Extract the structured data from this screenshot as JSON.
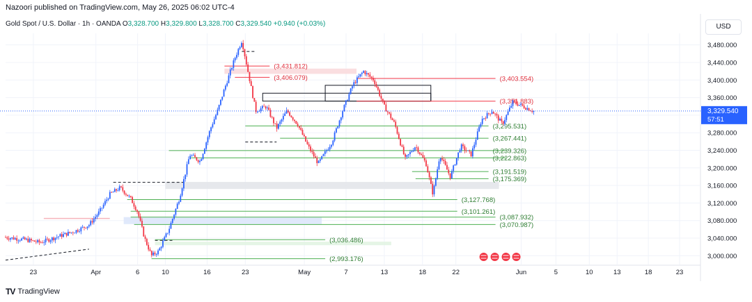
{
  "header": {
    "published": "Nazoori published on TradingView.com, May 26, 2025 06:02 UTC-4",
    "symbol": "Gold Spot / U.S. Dollar · 1h · OANDA",
    "o_label": "O",
    "o": "3,328.700",
    "h_label": "H",
    "h": "3,329.800",
    "l_label": "L",
    "l": "3,328.700",
    "c_label": "C",
    "c": "3,329.540",
    "change": "+0.940 (+0.03%)",
    "currency": "USD"
  },
  "footer": {
    "logo": "TV",
    "brand": "TradingView"
  },
  "colors": {
    "up": "#089981",
    "down": "#f23645",
    "bull_candle": "#2962ff",
    "support": "#4caf50",
    "resistance": "#f23645",
    "price": "#2962ff"
  },
  "chart_data": {
    "type": "candlestick",
    "title": "Gold Spot / U.S. Dollar · 1h · OANDA",
    "y_range": [
      2980,
      3500
    ],
    "y_ticks": [
      "3,480.000",
      "3,440.000",
      "3,400.000",
      "3,360.000",
      "3,320.000",
      "3,280.000",
      "3,240.000",
      "3,200.000",
      "3,160.000",
      "3,120.000",
      "3,080.000",
      "3,040.000",
      "3,000.000"
    ],
    "y_tick_values": [
      3480,
      3440,
      3400,
      3360,
      3320,
      3280,
      3240,
      3200,
      3160,
      3120,
      3080,
      3040,
      3000
    ],
    "x_ticks": [
      "23",
      "Apr",
      "6",
      "10",
      "16",
      "23",
      "May",
      "7",
      "13",
      "18",
      "22",
      "Jun",
      "5",
      "10",
      "13",
      "18",
      "23"
    ],
    "current_price": {
      "value": 3329.54,
      "label": "3,329.540",
      "countdown": "57:51"
    },
    "price_path": [
      [
        0,
        3042
      ],
      [
        0.03,
        3036
      ],
      [
        0.05,
        3030
      ],
      [
        0.08,
        3046
      ],
      [
        0.1,
        3056
      ],
      [
        0.12,
        3070
      ],
      [
        0.135,
        3100
      ],
      [
        0.15,
        3140
      ],
      [
        0.165,
        3155
      ],
      [
        0.18,
        3130
      ],
      [
        0.19,
        3100
      ],
      [
        0.2,
        3040
      ],
      [
        0.21,
        3000
      ],
      [
        0.22,
        3010
      ],
      [
        0.235,
        3060
      ],
      [
        0.25,
        3130
      ],
      [
        0.265,
        3230
      ],
      [
        0.28,
        3215
      ],
      [
        0.295,
        3290
      ],
      [
        0.305,
        3330
      ],
      [
        0.315,
        3380
      ],
      [
        0.33,
        3450
      ],
      [
        0.34,
        3490
      ],
      [
        0.35,
        3410
      ],
      [
        0.36,
        3330
      ],
      [
        0.375,
        3340
      ],
      [
        0.39,
        3290
      ],
      [
        0.405,
        3330
      ],
      [
        0.42,
        3300
      ],
      [
        0.435,
        3250
      ],
      [
        0.45,
        3210
      ],
      [
        0.47,
        3260
      ],
      [
        0.485,
        3330
      ],
      [
        0.5,
        3390
      ],
      [
        0.515,
        3420
      ],
      [
        0.53,
        3400
      ],
      [
        0.545,
        3340
      ],
      [
        0.56,
        3300
      ],
      [
        0.575,
        3220
      ],
      [
        0.59,
        3250
      ],
      [
        0.605,
        3210
      ],
      [
        0.615,
        3140
      ],
      [
        0.625,
        3230
      ],
      [
        0.64,
        3180
      ],
      [
        0.655,
        3250
      ],
      [
        0.67,
        3230
      ],
      [
        0.685,
        3310
      ],
      [
        0.7,
        3330
      ],
      [
        0.715,
        3300
      ],
      [
        0.73,
        3350
      ],
      [
        0.745,
        3340
      ],
      [
        0.76,
        3329
      ]
    ],
    "levels": [
      {
        "label": "(3,431.812)",
        "value": 3431.812,
        "kind": "resistance"
      },
      {
        "label": "(3,406.079)",
        "value": 3406.079,
        "kind": "resistance"
      },
      {
        "label": "(3,403.554)",
        "value": 3403.554,
        "kind": "resistance"
      },
      {
        "label": "(3,351.883)",
        "value": 3351.883,
        "kind": "resistance"
      },
      {
        "label": "(3,295.531)",
        "value": 3295.531,
        "kind": "support"
      },
      {
        "label": "(3,267.441)",
        "value": 3267.441,
        "kind": "support"
      },
      {
        "label": "(3,239.326)",
        "value": 3239.326,
        "kind": "support"
      },
      {
        "label": "(3,222.863)",
        "value": 3222.863,
        "kind": "support"
      },
      {
        "label": "(3,191.519)",
        "value": 3191.519,
        "kind": "support"
      },
      {
        "label": "(3,175.369)",
        "value": 3175.369,
        "kind": "support"
      },
      {
        "label": "(3,127.768)",
        "value": 3127.768,
        "kind": "support"
      },
      {
        "label": "(3,101.261)",
        "value": 3101.261,
        "kind": "support"
      },
      {
        "label": "(3,087.932)",
        "value": 3087.932,
        "kind": "support"
      },
      {
        "label": "(3,070.987)",
        "value": 3070.987,
        "kind": "support"
      },
      {
        "label": "(3,036.486)",
        "value": 3036.486,
        "kind": "support"
      },
      {
        "label": "(2,993.176)",
        "value": 2993.176,
        "kind": "support"
      }
    ]
  }
}
